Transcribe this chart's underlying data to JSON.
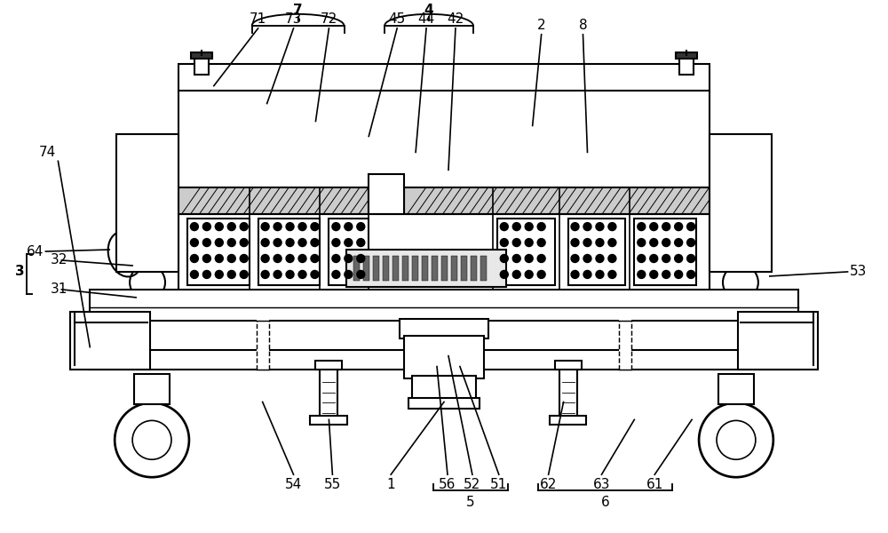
{
  "bg_color": "#ffffff",
  "line_color": "#000000",
  "line_width": 1.5,
  "fig_width": 10.0,
  "fig_height": 6.0
}
